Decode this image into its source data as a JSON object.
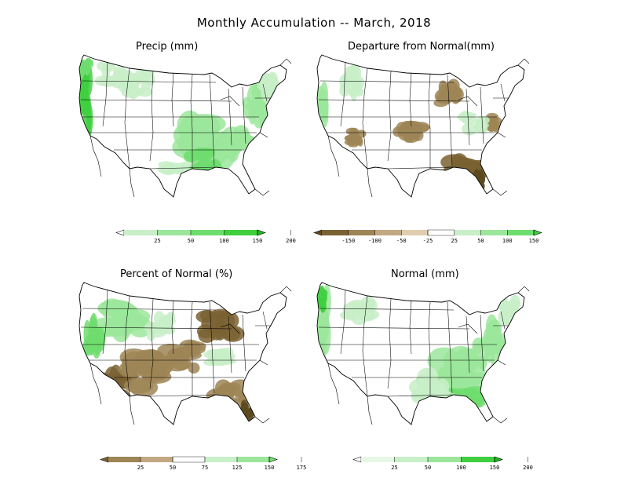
{
  "title": "Monthly Accumulation -- March, 2018",
  "palette": {
    "green_scale": [
      "#e6f7e6",
      "#c8efc8",
      "#9be69b",
      "#6edd6e",
      "#3fcf3f",
      "#22b822"
    ],
    "brown_scale": [
      "#5c4a1e",
      "#7a6232",
      "#9e8556",
      "#c2a882",
      "#e0cdb0"
    ],
    "diverging_green": [
      "#c8efc8",
      "#9be69b",
      "#6edd6e",
      "#3fcf3f",
      "#22b822"
    ]
  },
  "panels": [
    {
      "id": "precip",
      "title": "Precip (mm)",
      "colorbar": {
        "ticks": [
          "25",
          "50",
          "100",
          "150",
          "200"
        ],
        "colors": [
          "#ffffff",
          "#c8efc8",
          "#9be69b",
          "#6edd6e",
          "#3fcf3f",
          "#22b822"
        ]
      }
    },
    {
      "id": "departure",
      "title": "Departure from Normal(mm)",
      "colorbar": {
        "ticks": [
          "-150",
          "-100",
          "-50",
          "-25",
          "25",
          "50",
          "100",
          "150"
        ],
        "colors": [
          "#5c4a1e",
          "#7a6232",
          "#9e8556",
          "#c2a882",
          "#e0cdb0",
          "#ffffff",
          "#c8efc8",
          "#9be69b",
          "#6edd6e",
          "#3fcf3f"
        ]
      }
    },
    {
      "id": "percent",
      "title": "Percent of Normal (%)",
      "colorbar": {
        "ticks": [
          "25",
          "50",
          "75",
          "125",
          "150",
          "175"
        ],
        "colors": [
          "#7a6232",
          "#9e8556",
          "#c2a882",
          "#ffffff",
          "#c8efc8",
          "#9be69b",
          "#6edd6e"
        ]
      }
    },
    {
      "id": "normal",
      "title": "Normal (mm)",
      "colorbar": {
        "ticks": [
          "25",
          "50",
          "100",
          "150",
          "200"
        ],
        "colors": [
          "#ffffff",
          "#e6f7e6",
          "#c8efc8",
          "#9be69b",
          "#3fcf3f",
          "#22b822"
        ]
      }
    }
  ]
}
